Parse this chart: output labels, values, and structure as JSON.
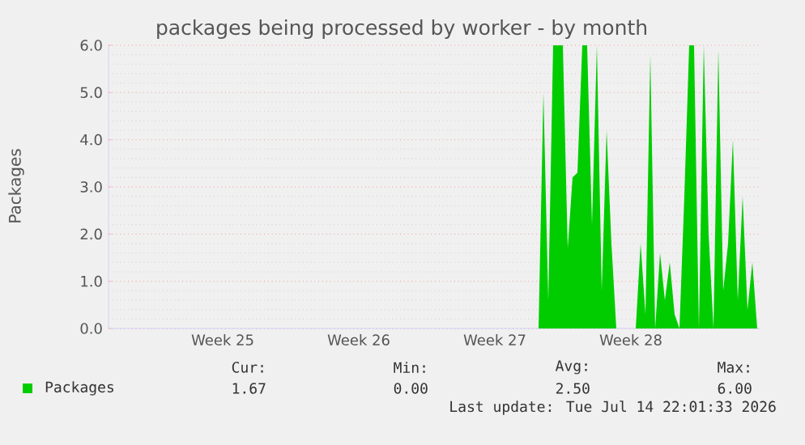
{
  "chart_data": {
    "type": "area",
    "title": "packages being processed by worker - by month",
    "ylabel": "Packages",
    "categories": [
      null,
      null,
      null,
      null,
      null,
      null,
      null,
      null,
      null,
      null,
      null,
      null,
      null,
      null,
      null,
      null,
      null,
      null,
      null,
      null,
      null,
      null,
      null,
      "Week 25",
      null,
      null,
      null,
      null,
      null,
      null,
      null,
      null,
      null,
      null,
      null,
      null,
      null,
      null,
      null,
      null,
      null,
      null,
      null,
      null,
      null,
      null,
      null,
      null,
      null,
      null,
      null,
      "Week 26",
      null,
      null,
      null,
      null,
      null,
      null,
      null,
      null,
      null,
      null,
      null,
      null,
      null,
      null,
      null,
      null,
      null,
      null,
      null,
      null,
      null,
      null,
      null,
      null,
      null,
      null,
      null,
      "Week 27",
      null,
      null,
      null,
      null,
      null,
      null,
      null,
      null,
      null,
      null,
      null,
      null,
      null,
      null,
      null,
      null,
      null,
      null,
      null,
      null,
      null,
      null,
      null,
      null,
      null,
      null,
      null,
      "Week 28",
      null,
      null,
      null,
      null,
      null,
      null,
      null,
      null,
      null,
      null,
      null,
      null,
      null,
      null,
      null,
      null,
      null,
      null,
      null,
      null,
      null,
      null,
      null,
      null,
      null,
      null
    ],
    "series": [
      {
        "name": "Packages",
        "color": "#00cc00",
        "values": [
          null,
          null,
          null,
          null,
          null,
          null,
          null,
          null,
          null,
          null,
          null,
          null,
          null,
          null,
          null,
          null,
          null,
          null,
          null,
          null,
          null,
          null,
          null,
          null,
          null,
          null,
          null,
          null,
          null,
          null,
          null,
          null,
          null,
          null,
          null,
          null,
          null,
          null,
          null,
          null,
          null,
          null,
          null,
          null,
          null,
          null,
          null,
          null,
          null,
          null,
          null,
          null,
          null,
          null,
          null,
          null,
          null,
          null,
          null,
          null,
          null,
          null,
          null,
          null,
          null,
          null,
          null,
          null,
          null,
          null,
          null,
          null,
          null,
          null,
          null,
          null,
          null,
          null,
          null,
          null,
          null,
          null,
          null,
          null,
          null,
          null,
          null,
          null,
          0,
          5.0,
          0.6,
          6.0,
          6.0,
          6.0,
          1.7,
          3.2,
          3.3,
          6.0,
          6.0,
          2.2,
          6.0,
          0.8,
          4.2,
          1.8,
          0,
          0,
          0,
          0,
          0,
          1.8,
          0.3,
          5.8,
          0,
          1.6,
          0.6,
          1.4,
          0.3,
          0,
          2.8,
          6.0,
          6.0,
          0,
          6.0,
          2.0,
          0,
          5.9,
          0.8,
          1.8,
          4.0,
          0.6,
          2.8,
          0.4,
          1.4,
          0
        ]
      }
    ],
    "ylim": [
      0,
      6
    ],
    "yticks": [
      {
        "value": 0,
        "label": "0.0"
      },
      {
        "value": 1,
        "label": "1.0"
      },
      {
        "value": 2,
        "label": "2.0"
      },
      {
        "value": 3,
        "label": "3.0"
      },
      {
        "value": 4,
        "label": "4.0"
      },
      {
        "value": 5,
        "label": "5.0"
      },
      {
        "value": 6,
        "label": "6.0"
      }
    ],
    "grid": "y",
    "legend": "bottom",
    "annotations": [
      "Cur:",
      "Min:",
      "Avg:",
      "Max:",
      "1.67",
      "0.00",
      "2.50",
      "6.00",
      "Last update: Tue Jul 14 22:01:33 2026"
    ]
  }
}
